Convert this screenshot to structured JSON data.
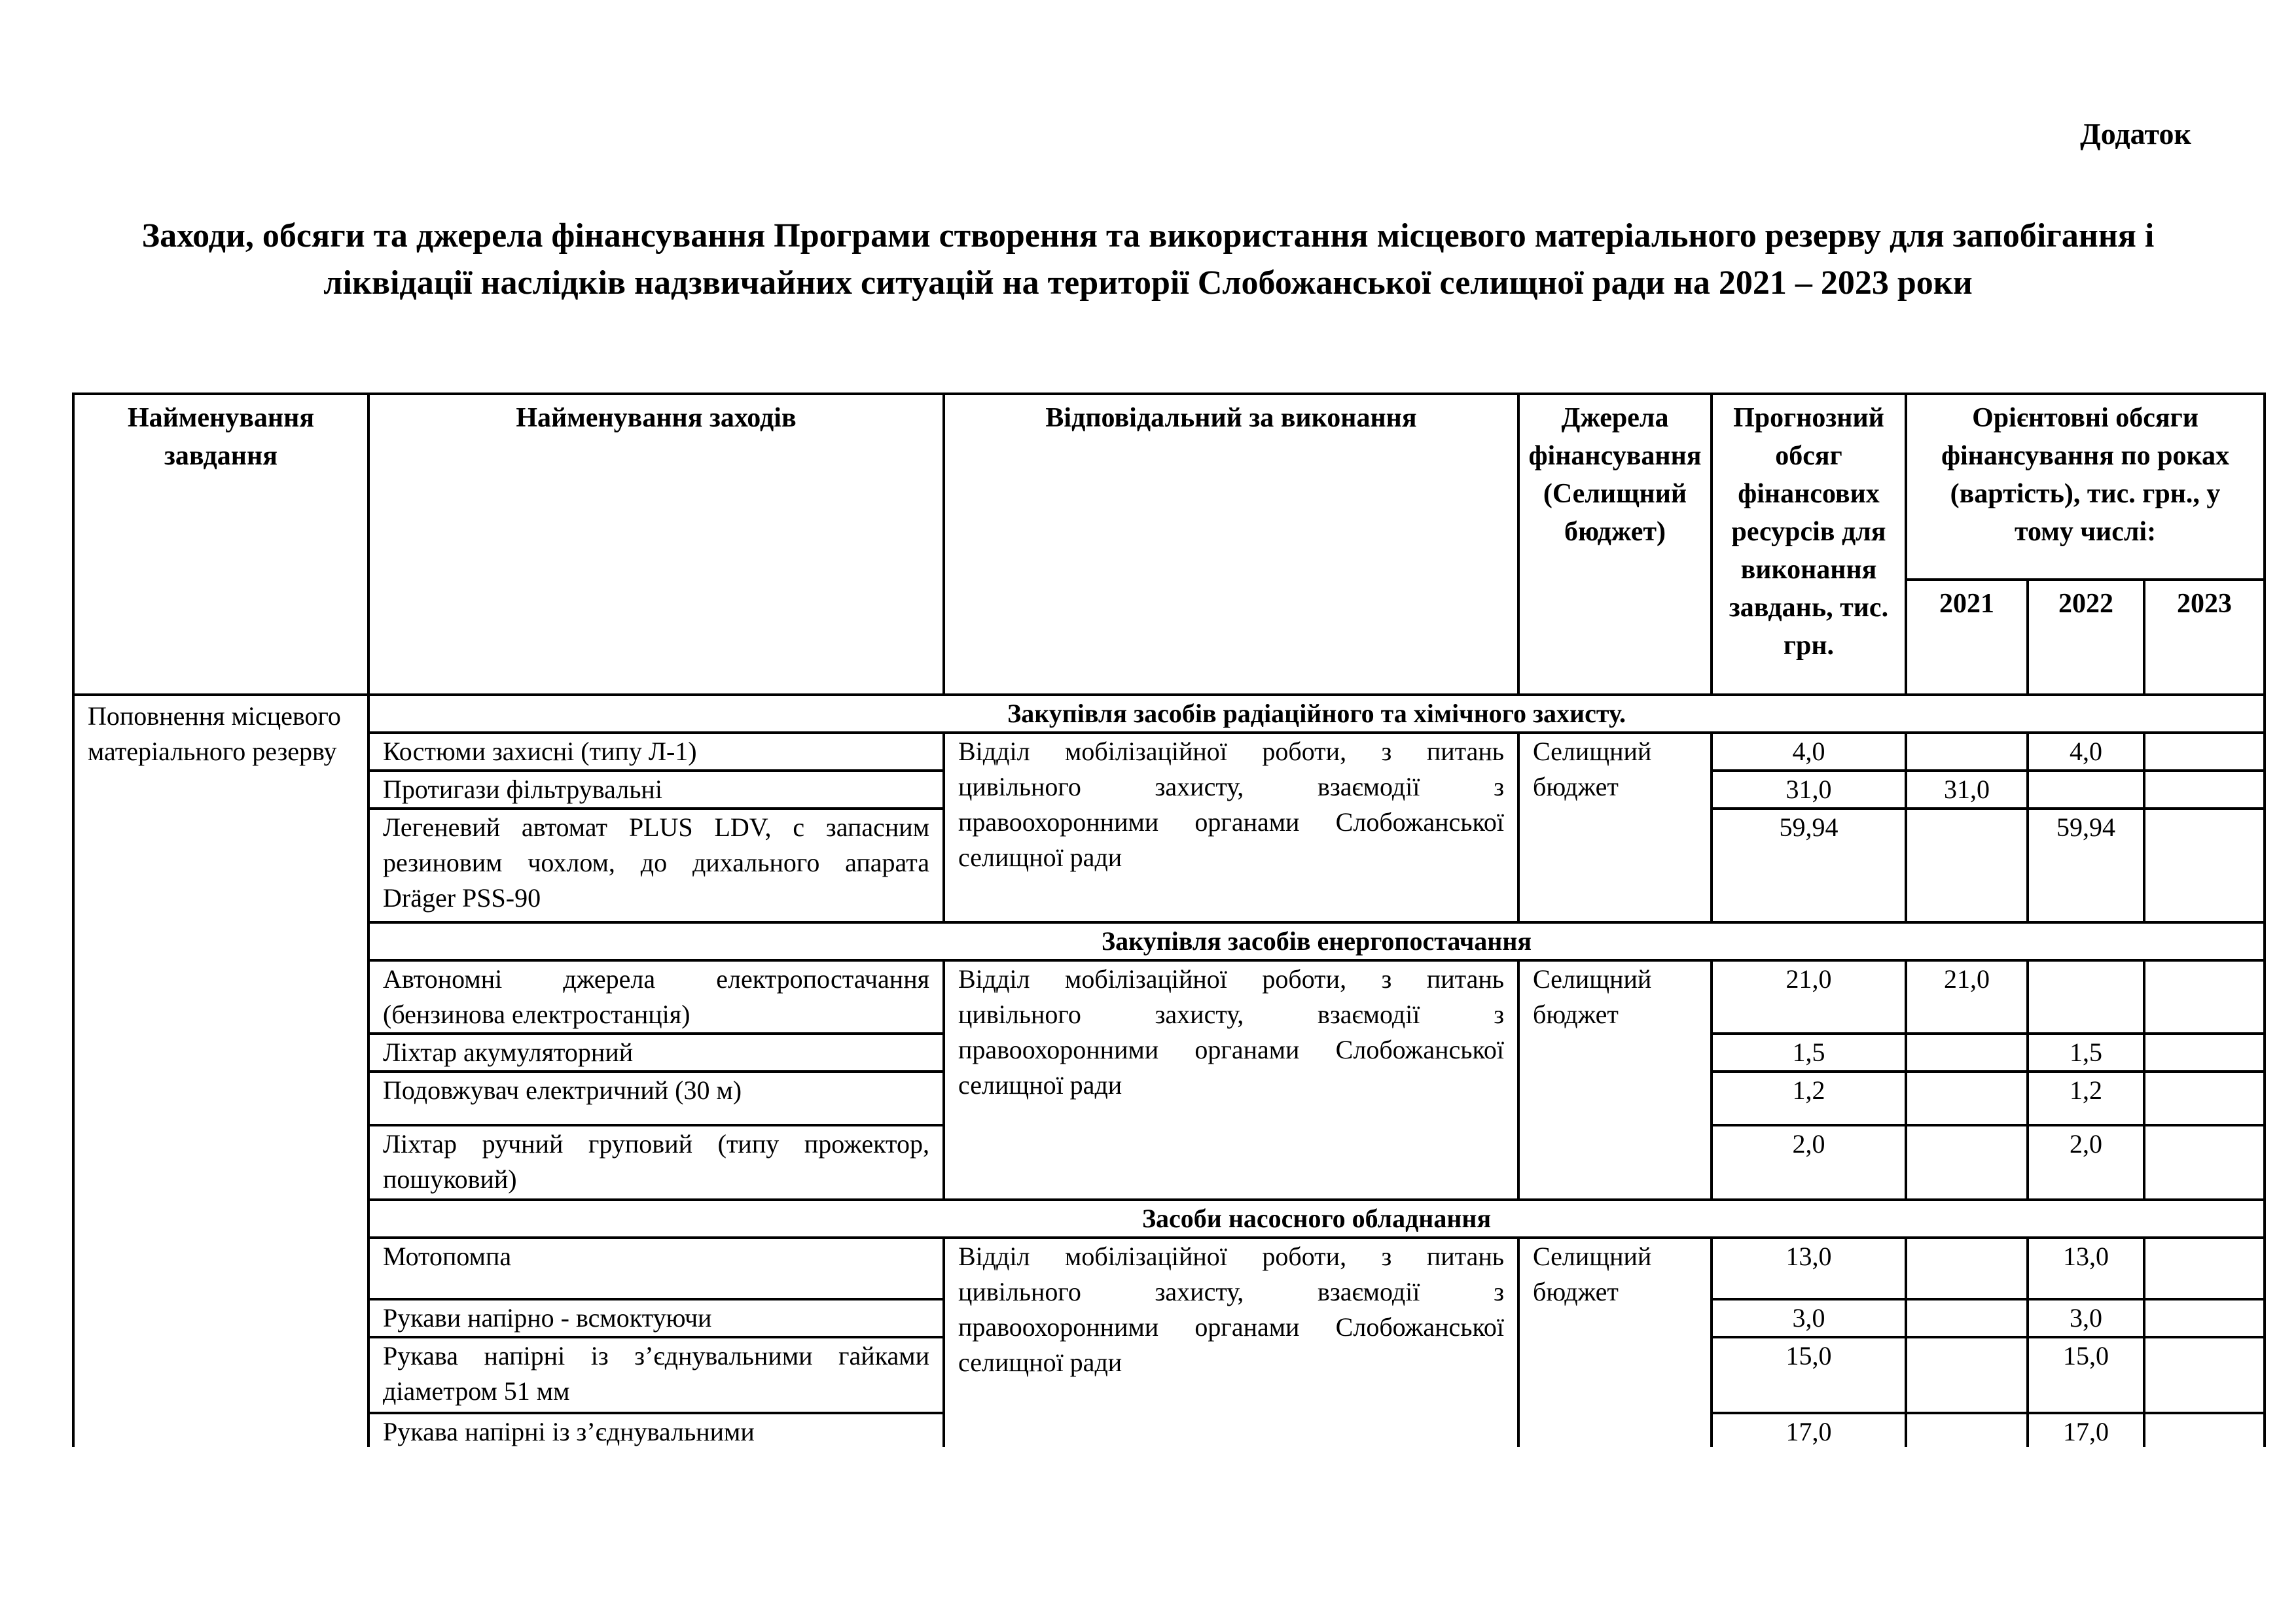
{
  "appendix_label": "Додаток",
  "title": "Заходи, обсяги та джерела фінансування Програми створення та використання місцевого матеріального резерву для запобігання і ліквідації наслідків надзвичайних ситуацій на території Слобожанської селищної ради на 2021 – 2023 роки",
  "table": {
    "headers": {
      "task": "Найменування завдання",
      "measures": "Найменування заходів",
      "responsible": "Відповідальний за  виконання",
      "source": "Джерела фінансування (Селищний бюджет)",
      "forecast": "Прогнозний обсяг фінансових ресурсів для виконання завдань, тис. грн.",
      "by_years": "Орієнтовні обсяги фінансування по роках (вартість), тис. грн., у тому числі:",
      "years": [
        "2021",
        "2022",
        "2023"
      ]
    },
    "task_name": "Поповнення місцевого матеріального резерву",
    "sections": [
      {
        "title": "Закупівля засобів радіаційного та хімічного захисту.",
        "responsible": "Відділ мобілізаційної роботи, з питань цивільного захисту, взаємодії з правоохоронними органами Слобожанської селищної ради",
        "source": "Селищний бюджет",
        "rows": [
          {
            "name": "Костюми захисні (типу Л-1)",
            "total": "4,0",
            "y2021": "",
            "y2022": "4,0",
            "y2023": ""
          },
          {
            "name": "Протигази фільтрувальні",
            "total": "31,0",
            "y2021": "31,0",
            "y2022": "",
            "y2023": ""
          },
          {
            "name": "Легеневий автомат PLUS LDV, с запасним резиновим чохлом, до дихального апарата Dräger PSS-90",
            "total": "59,94",
            "y2021": "",
            "y2022": "59,94",
            "y2023": ""
          }
        ]
      },
      {
        "title": "Закупівля засобів енергопостачання",
        "responsible": "Відділ мобілізаційної роботи, з питань цивільного захисту, взаємодії з правоохоронними органами Слобожанської селищної ради",
        "source": "Селищний бюджет",
        "rows": [
          {
            "name": "Автономні джерела електропостачання (бензинова електростанція)",
            "total": "21,0",
            "y2021": "21,0",
            "y2022": "",
            "y2023": ""
          },
          {
            "name": "Ліхтар акумуляторний",
            "total": "1,5",
            "y2021": "",
            "y2022": "1,5",
            "y2023": ""
          },
          {
            "name": "Подовжувач електричний (30 м)",
            "total": "1,2",
            "y2021": "",
            "y2022": "1,2",
            "y2023": ""
          },
          {
            "name": "Ліхтар ручний груповий (типу прожектор, пошуковий)",
            "total": "2,0",
            "y2021": "",
            "y2022": "2,0",
            "y2023": ""
          }
        ]
      },
      {
        "title": "Засоби насосного обладнання",
        "responsible": "Відділ мобілізаційної роботи, з питань цивільного захисту, взаємодії з правоохоронними органами Слобожанської селищної ради",
        "source": "Селищний бюджет",
        "rows": [
          {
            "name": "Мотопомпа",
            "total": "13,0",
            "y2021": "",
            "y2022": "13,0",
            "y2023": ""
          },
          {
            "name": "Рукави напірно - всмоктуючи",
            "total": "3,0",
            "y2021": "",
            "y2022": "3,0",
            "y2023": ""
          },
          {
            "name": "Рукава напірні із з’єднувальними гайками діаметром 51 мм",
            "total": "15,0",
            "y2021": "",
            "y2022": "15,0",
            "y2023": ""
          },
          {
            "name": "Рукава напірні із з’єднувальними",
            "total": "17,0",
            "y2021": "",
            "y2022": "17,0",
            "y2023": ""
          }
        ]
      }
    ]
  }
}
